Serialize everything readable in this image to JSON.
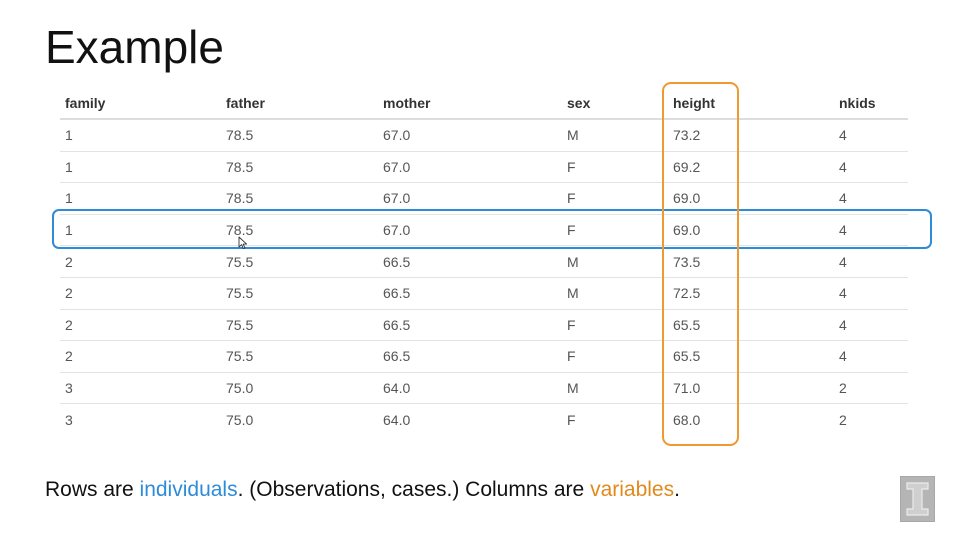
{
  "slide": {
    "title": "Example"
  },
  "table": {
    "columns": [
      "family",
      "father",
      "mother",
      "sex",
      "height",
      "nkids"
    ],
    "rows": [
      [
        "1",
        "78.5",
        "67.0",
        "M",
        "73.2",
        "4"
      ],
      [
        "1",
        "78.5",
        "67.0",
        "F",
        "69.2",
        "4"
      ],
      [
        "1",
        "78.5",
        "67.0",
        "F",
        "69.0",
        "4"
      ],
      [
        "1",
        "78.5",
        "67.0",
        "F",
        "69.0",
        "4"
      ],
      [
        "2",
        "75.5",
        "66.5",
        "M",
        "73.5",
        "4"
      ],
      [
        "2",
        "75.5",
        "66.5",
        "M",
        "72.5",
        "4"
      ],
      [
        "2",
        "75.5",
        "66.5",
        "F",
        "65.5",
        "4"
      ],
      [
        "2",
        "75.5",
        "66.5",
        "F",
        "65.5",
        "4"
      ],
      [
        "3",
        "75.0",
        "64.0",
        "M",
        "71.0",
        "2"
      ],
      [
        "3",
        "75.0",
        "64.0",
        "F",
        "68.0",
        "2"
      ]
    ],
    "highlighted_row_index": 3,
    "highlighted_column": "height"
  },
  "caption": {
    "part1": "Rows are ",
    "word_individuals": "individuals",
    "part2": ". (Observations, cases.) Columns are ",
    "word_variables": "variables",
    "part3": "."
  },
  "colors": {
    "row_highlight": "#2e8bd8",
    "column_highlight": "#ee9a32",
    "individuals_text": "#2e8bd8",
    "variables_text": "#e08a1e"
  },
  "icons": {
    "cursor": "mouse-pointer-icon",
    "logo": "university-block-i-logo-icon"
  }
}
